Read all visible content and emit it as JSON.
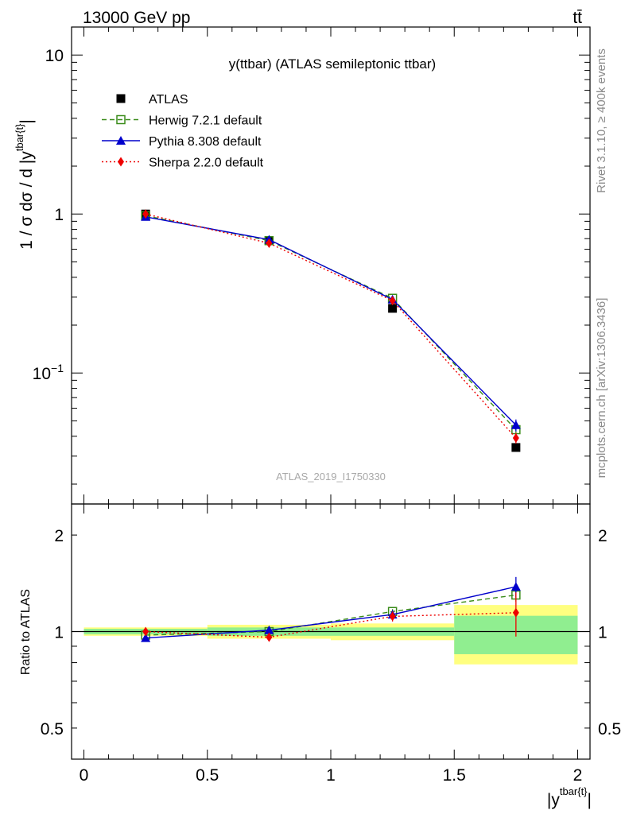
{
  "header": {
    "left": "13000 GeV pp",
    "right": "tt̄"
  },
  "side": {
    "rivet": "Rivet 3.1.10, ≥ 400k events",
    "source": "mcplots.cern.ch [arXiv:1306.3436]"
  },
  "chart_data": [
    {
      "type": "line",
      "title": "y(ttbar) (ATLAS semileptonic ttbar)",
      "watermark": "ATLAS_2019_I1750330",
      "ylabel": "1 / σ dσ / d |y^{tbar{t}}|",
      "yscale": "log",
      "ylim": [
        0.015,
        15
      ],
      "y_ticks": [
        "10^{-1}",
        "1",
        "10"
      ],
      "legend_position": "top-left",
      "bin_edges": [
        0,
        0.5,
        1,
        1.5,
        2
      ],
      "x": [
        0.25,
        0.75,
        1.25,
        1.75
      ],
      "series": [
        {
          "name": "ATLAS",
          "style": "data",
          "color": "#000000",
          "marker": "square",
          "values": [
            1.0,
            0.68,
            0.255,
            0.034
          ]
        },
        {
          "name": "Herwig 7.2.1 default",
          "style": "dashed",
          "color": "#3a8c1a",
          "marker": "open-square",
          "values": [
            0.975,
            0.68,
            0.295,
            0.044
          ],
          "errors": [
            0.005,
            0.004,
            0.003,
            0.002
          ]
        },
        {
          "name": "Pythia 8.308 default",
          "style": "solid",
          "color": "#0000cc",
          "marker": "triangle",
          "values": [
            0.96,
            0.69,
            0.29,
            0.047
          ],
          "errors": [
            0.005,
            0.004,
            0.003,
            0.004
          ]
        },
        {
          "name": "Sherpa 2.2.0 default",
          "style": "dotted",
          "color": "#ee0000",
          "marker": "diamond",
          "values": [
            1.0,
            0.655,
            0.285,
            0.039
          ],
          "errors": [
            0.006,
            0.005,
            0.004,
            0.003
          ]
        }
      ]
    },
    {
      "type": "line",
      "ylabel": "Ratio to ATLAS",
      "xlabel": "|y^{tbar{t}}|",
      "yscale": "log",
      "ylim": [
        0.4,
        2.5
      ],
      "y_ticks": [
        0.5,
        1,
        2
      ],
      "x_ticks": [
        "0",
        "0.5",
        "1",
        "1.5",
        "2"
      ],
      "xlim": [
        -0.05,
        2.05
      ],
      "bin_edges": [
        0,
        0.5,
        1,
        1.5,
        2
      ],
      "x": [
        0.25,
        0.75,
        1.25,
        1.75
      ],
      "bands": {
        "stat_color": "#90ee90",
        "total_color": "#ffff80",
        "stat": [
          [
            0.98,
            1.02
          ],
          [
            0.97,
            1.03
          ],
          [
            0.97,
            1.03
          ],
          [
            0.85,
            1.12
          ]
        ],
        "total": [
          [
            0.97,
            1.03
          ],
          [
            0.95,
            1.05
          ],
          [
            0.94,
            1.06
          ],
          [
            0.79,
            1.21
          ]
        ]
      },
      "series": [
        {
          "name": "Herwig 7.2.1 default",
          "style": "dashed",
          "color": "#3a8c1a",
          "marker": "open-square",
          "values": [
            0.975,
            1.0,
            1.155,
            1.3
          ],
          "errors": [
            0.01,
            0.01,
            0.02,
            0.06
          ]
        },
        {
          "name": "Pythia 8.308 default",
          "style": "solid",
          "color": "#0000cc",
          "marker": "triangle",
          "values": [
            0.955,
            1.01,
            1.13,
            1.38
          ],
          "errors": [
            0.01,
            0.01,
            0.02,
            0.1
          ]
        },
        {
          "name": "Sherpa 2.2.0 default",
          "style": "dotted",
          "color": "#ee0000",
          "marker": "diamond",
          "values": [
            1.0,
            0.96,
            1.115,
            1.145
          ],
          "errors": [
            0.02,
            0.02,
            0.04,
            0.18
          ]
        }
      ]
    }
  ]
}
